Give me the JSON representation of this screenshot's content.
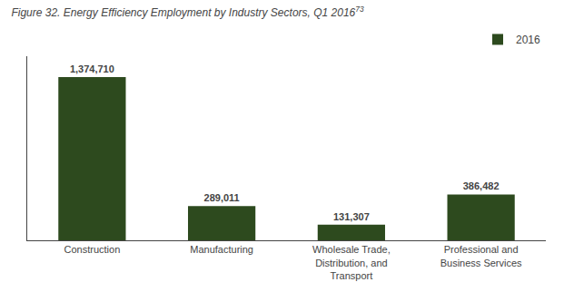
{
  "chart_data": {
    "type": "bar",
    "title": "Figure 32. Energy Efficiency Employment by Industry Sectors, Q1 2016",
    "annotations": [
      "73"
    ],
    "categories": [
      "Construction",
      "Manufacturing",
      "Wholesale Trade,\nDistribution, and\nTransport",
      "Professional and\nBusiness Services"
    ],
    "series": [
      {
        "name": "2016",
        "color": "#2d4a1e",
        "values": [
          1374710,
          289011,
          131307,
          386482
        ],
        "value_labels": [
          "1,374,710",
          "289,011",
          "131,307",
          "386,482"
        ]
      }
    ],
    "ylim": [
      0,
      1550000
    ],
    "grid": false,
    "legend": "upper right",
    "data_labels": true,
    "tick_labels": "x"
  }
}
